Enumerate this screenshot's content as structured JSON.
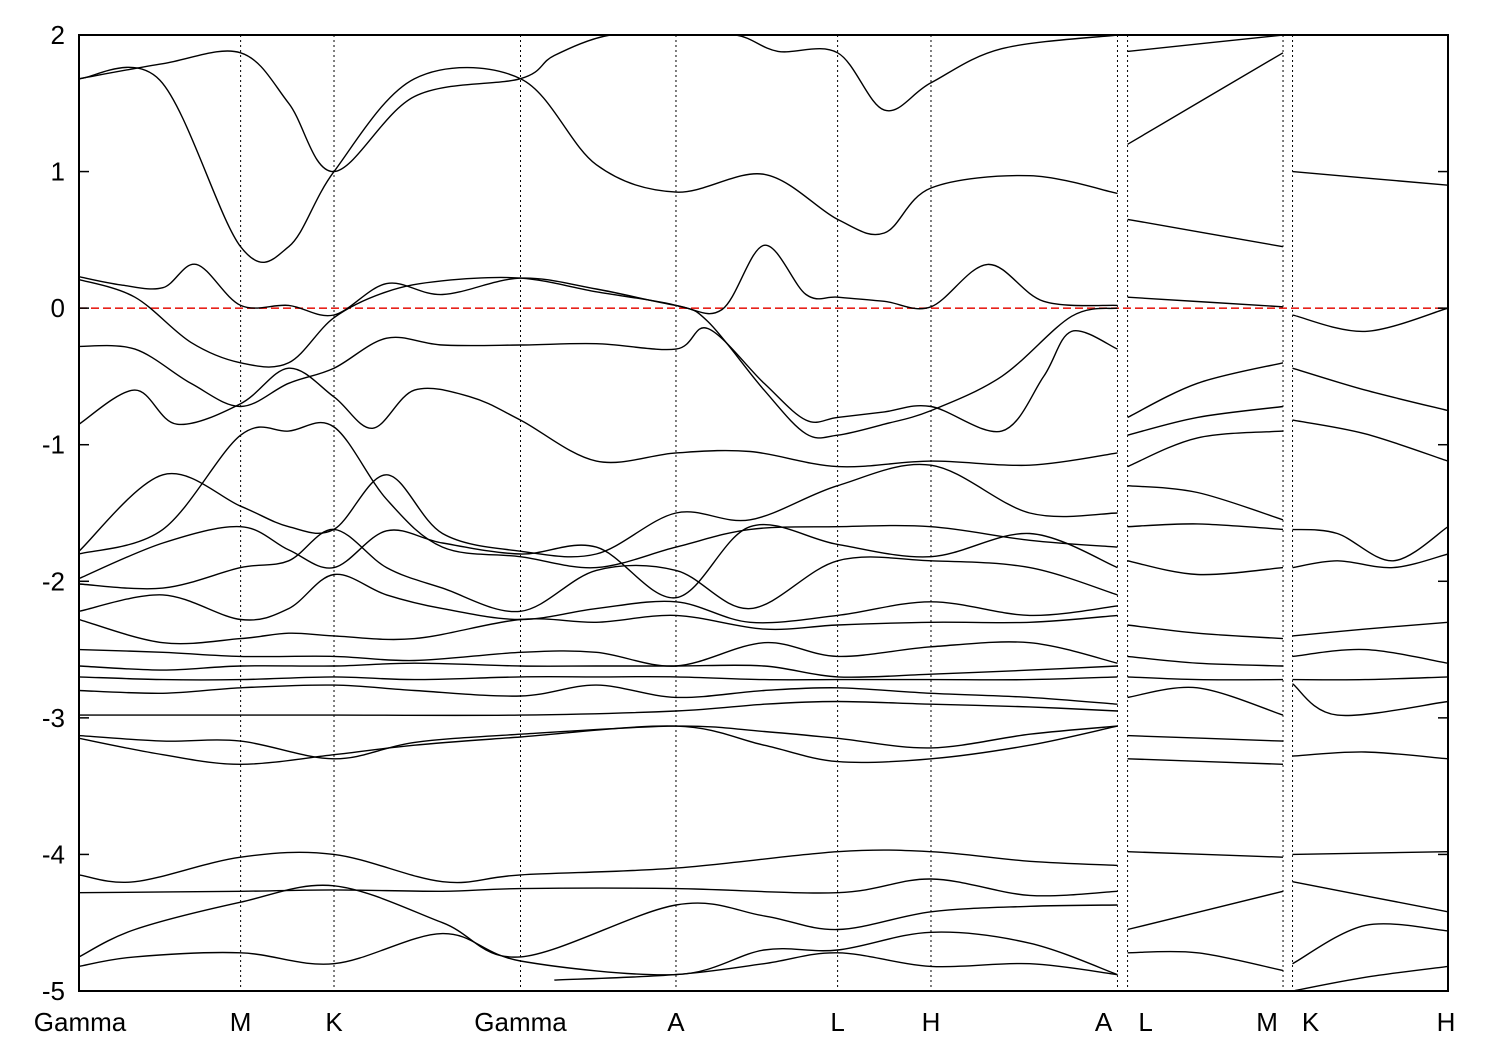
{
  "chart_data": {
    "type": "line",
    "ylim": [
      -5,
      2
    ],
    "y_ticks": [
      2,
      1,
      0,
      -1,
      -2,
      -3,
      -4,
      -5
    ],
    "y_tick_labels": [
      "2",
      "1",
      "0",
      "-1",
      "-2",
      "-3",
      "-4",
      "-5"
    ],
    "k_path": [
      {
        "label": "Gamma",
        "k": 0.0
      },
      {
        "label": "M",
        "k": 0.578
      },
      {
        "label": "K",
        "k": 0.912
      },
      {
        "label": "Gamma",
        "k": 1.579
      },
      {
        "label": "A",
        "k": 2.135
      },
      {
        "label": "L",
        "k": 2.713
      },
      {
        "label": "H",
        "k": 3.047
      },
      {
        "label": "A",
        "k": 3.714
      },
      {
        "label": "L",
        "k": 3.75
      },
      {
        "label": "M",
        "k": 4.306
      },
      {
        "label": "K",
        "k": 4.34
      },
      {
        "label": "H",
        "k": 4.896
      }
    ],
    "x_range": [
      0,
      4.896
    ],
    "fermi_level": 0.0,
    "fermi_line_color": "#e8221a",
    "band_color": "#000000",
    "bands": [
      {
        "k": [
          0,
          0.289,
          0.578,
          0.75,
          0.912,
          1.2,
          1.579,
          1.85,
          2.135,
          2.45,
          2.713,
          2.88,
          3.047,
          3.4,
          3.714
        ],
        "e": [
          1.68,
          1.67,
          0.45,
          0.45,
          1.0,
          1.68,
          1.68,
          1.05,
          0.85,
          0.98,
          0.65,
          0.55,
          0.88,
          0.97,
          0.84
        ]
      },
      {
        "k": [
          0,
          0.3,
          0.578,
          0.75,
          0.912,
          1.2,
          1.579,
          1.7,
          1.9,
          2.135,
          2.35,
          2.5,
          2.713,
          2.88,
          3.047,
          3.3,
          3.714
        ],
        "e": [
          1.68,
          1.79,
          1.87,
          1.5,
          1.0,
          1.55,
          1.68,
          1.85,
          2.0,
          2.0,
          2.0,
          1.88,
          1.87,
          1.45,
          1.65,
          1.9,
          2.0
        ]
      },
      {
        "k": [
          0,
          0.15,
          0.3,
          0.42,
          0.578,
          0.75,
          0.912,
          1.1,
          1.3,
          1.579,
          1.85,
          2.135,
          2.3,
          2.45,
          2.6,
          2.713,
          2.88,
          3.047,
          3.25,
          3.45,
          3.714
        ],
        "e": [
          0.23,
          0.17,
          0.15,
          0.32,
          0.02,
          0.02,
          -0.05,
          0.18,
          0.1,
          0.22,
          0.14,
          0.02,
          -0.01,
          0.46,
          0.1,
          0.08,
          0.05,
          0.01,
          0.32,
          0.05,
          0.02
        ]
      },
      {
        "k": [
          0,
          0.2,
          0.4,
          0.578,
          0.75,
          0.912,
          1.1,
          1.3,
          1.579,
          1.85,
          2.135,
          2.25,
          2.45,
          2.6,
          2.713,
          2.88,
          3.047,
          3.3,
          3.55,
          3.714
        ],
        "e": [
          0.21,
          0.08,
          -0.25,
          -0.4,
          -0.4,
          -0.07,
          0.12,
          0.2,
          0.22,
          0.12,
          0.02,
          -0.1,
          -0.6,
          -0.92,
          -0.93,
          -0.85,
          -0.75,
          -0.5,
          -0.06,
          0.0
        ]
      },
      {
        "k": [
          0,
          0.2,
          0.4,
          0.578,
          0.75,
          0.912,
          1.1,
          1.3,
          1.579,
          1.85,
          2.135,
          2.25,
          2.45,
          2.6,
          2.713,
          2.88,
          3.047,
          3.3,
          3.45,
          3.55,
          3.714
        ],
        "e": [
          -0.28,
          -0.3,
          -0.55,
          -0.72,
          -0.55,
          -0.44,
          -0.22,
          -0.27,
          -0.27,
          -0.26,
          -0.3,
          -0.15,
          -0.55,
          -0.82,
          -0.8,
          -0.76,
          -0.72,
          -0.9,
          -0.5,
          -0.17,
          -0.3
        ]
      },
      {
        "k": [
          0,
          0.2,
          0.35,
          0.578,
          0.75,
          0.912,
          1.05,
          1.2,
          1.4,
          1.579,
          1.85,
          2.135,
          2.4,
          2.713,
          3.047,
          3.4,
          3.714
        ],
        "e": [
          -0.85,
          -0.6,
          -0.85,
          -0.7,
          -0.44,
          -0.65,
          -0.88,
          -0.6,
          -0.65,
          -0.82,
          -1.12,
          -1.06,
          -1.05,
          -1.16,
          -1.12,
          -1.15,
          -1.06
        ]
      },
      {
        "k": [
          0,
          0.3,
          0.578,
          0.75,
          0.912,
          1.1,
          1.3,
          1.579,
          1.85,
          2.135,
          2.4,
          2.713,
          3.047,
          3.4,
          3.714
        ],
        "e": [
          -1.78,
          -1.22,
          -1.45,
          -1.6,
          -1.62,
          -1.22,
          -1.65,
          -1.78,
          -1.8,
          -1.5,
          -1.55,
          -1.3,
          -1.15,
          -1.5,
          -1.5
        ]
      },
      {
        "k": [
          0,
          0.3,
          0.578,
          0.75,
          0.912,
          1.1,
          1.3,
          1.579,
          1.85,
          2.135,
          2.4,
          2.713,
          3.047,
          3.4,
          3.714
        ],
        "e": [
          -1.8,
          -1.62,
          -0.93,
          -0.9,
          -0.87,
          -1.4,
          -1.75,
          -1.82,
          -1.9,
          -1.75,
          -1.62,
          -1.6,
          -1.6,
          -1.7,
          -1.75
        ]
      },
      {
        "k": [
          0,
          0.3,
          0.578,
          0.75,
          0.912,
          1.1,
          1.3,
          1.579,
          1.85,
          2.135,
          2.4,
          2.713,
          3.047,
          3.4,
          3.714
        ],
        "e": [
          -1.98,
          -1.72,
          -1.6,
          -1.77,
          -1.9,
          -1.63,
          -1.72,
          -1.8,
          -1.75,
          -2.12,
          -1.6,
          -1.73,
          -1.82,
          -1.65,
          -1.9
        ]
      },
      {
        "k": [
          0,
          0.3,
          0.578,
          0.75,
          0.912,
          1.1,
          1.3,
          1.579,
          1.85,
          2.135,
          2.4,
          2.713,
          3.047,
          3.4,
          3.714
        ],
        "e": [
          -2.02,
          -2.05,
          -1.9,
          -1.85,
          -1.62,
          -1.9,
          -2.05,
          -2.22,
          -1.92,
          -1.92,
          -2.2,
          -1.85,
          -1.85,
          -1.9,
          -2.1
        ]
      },
      {
        "k": [
          0,
          0.3,
          0.578,
          0.75,
          0.912,
          1.1,
          1.3,
          1.579,
          1.85,
          2.135,
          2.4,
          2.713,
          3.047,
          3.4,
          3.714
        ],
        "e": [
          -2.22,
          -2.1,
          -2.28,
          -2.2,
          -1.95,
          -2.1,
          -2.2,
          -2.28,
          -2.2,
          -2.15,
          -2.3,
          -2.25,
          -2.15,
          -2.25,
          -2.18
        ]
      },
      {
        "k": [
          0,
          0.3,
          0.578,
          0.75,
          0.912,
          1.2,
          1.579,
          1.85,
          2.135,
          2.45,
          2.713,
          3.047,
          3.4,
          3.714
        ],
        "e": [
          -2.28,
          -2.45,
          -2.42,
          -2.38,
          -2.4,
          -2.42,
          -2.28,
          -2.3,
          -2.25,
          -2.35,
          -2.32,
          -2.3,
          -2.3,
          -2.25
        ]
      },
      {
        "k": [
          0,
          0.3,
          0.578,
          0.912,
          1.2,
          1.579,
          1.85,
          2.135,
          2.45,
          2.713,
          3.047,
          3.4,
          3.714
        ],
        "e": [
          -2.5,
          -2.52,
          -2.55,
          -2.55,
          -2.58,
          -2.52,
          -2.52,
          -2.62,
          -2.45,
          -2.55,
          -2.48,
          -2.45,
          -2.6
        ]
      },
      {
        "k": [
          0,
          0.3,
          0.578,
          0.912,
          1.2,
          1.579,
          1.85,
          2.135,
          2.45,
          2.713,
          3.047,
          3.4,
          3.714
        ],
        "e": [
          -2.62,
          -2.65,
          -2.62,
          -2.62,
          -2.6,
          -2.62,
          -2.62,
          -2.62,
          -2.62,
          -2.7,
          -2.68,
          -2.65,
          -2.62
        ]
      },
      {
        "k": [
          0,
          0.3,
          0.578,
          0.912,
          1.2,
          1.579,
          1.85,
          2.135,
          2.45,
          2.713,
          3.047,
          3.4,
          3.714
        ],
        "e": [
          -2.7,
          -2.72,
          -2.72,
          -2.7,
          -2.72,
          -2.7,
          -2.7,
          -2.7,
          -2.72,
          -2.72,
          -2.72,
          -2.72,
          -2.7
        ]
      },
      {
        "k": [
          0,
          0.3,
          0.578,
          0.912,
          1.2,
          1.579,
          1.85,
          2.135,
          2.45,
          2.713,
          3.047,
          3.4,
          3.714
        ],
        "e": [
          -2.8,
          -2.82,
          -2.78,
          -2.76,
          -2.8,
          -2.84,
          -2.76,
          -2.85,
          -2.8,
          -2.78,
          -2.82,
          -2.85,
          -2.9
        ]
      },
      {
        "k": [
          0,
          0.578,
          0.912,
          1.579,
          2.135,
          2.45,
          2.713,
          3.047,
          3.4,
          3.714
        ],
        "e": [
          -2.98,
          -2.98,
          -2.98,
          -2.98,
          -2.95,
          -2.9,
          -2.88,
          -2.9,
          -2.92,
          -2.95
        ]
      },
      {
        "k": [
          0,
          0.3,
          0.578,
          0.912,
          1.2,
          1.579,
          2.135,
          2.45,
          2.713,
          3.047,
          3.4,
          3.714
        ],
        "e": [
          -3.13,
          -3.17,
          -3.17,
          -3.3,
          -3.18,
          -3.12,
          -3.06,
          -3.1,
          -3.15,
          -3.22,
          -3.12,
          -3.06
        ]
      },
      {
        "k": [
          0,
          0.3,
          0.578,
          0.912,
          1.2,
          1.579,
          2.135,
          2.45,
          2.713,
          3.047,
          3.4,
          3.714
        ],
        "e": [
          -3.15,
          -3.27,
          -3.34,
          -3.27,
          -3.2,
          -3.14,
          -3.06,
          -3.2,
          -3.32,
          -3.3,
          -3.2,
          -3.06
        ]
      },
      {
        "k": [
          0,
          0.2,
          0.578,
          0.912,
          1.3,
          1.579,
          2.135,
          2.713,
          3.047,
          3.4,
          3.714
        ],
        "e": [
          -4.15,
          -4.2,
          -4.02,
          -4.0,
          -4.2,
          -4.15,
          -4.1,
          -3.98,
          -3.98,
          -4.05,
          -4.08
        ]
      },
      {
        "k": [
          0,
          0.578,
          0.912,
          1.3,
          1.579,
          2.135,
          2.713,
          3.047,
          3.4,
          3.714
        ],
        "e": [
          -4.28,
          -4.27,
          -4.26,
          -4.27,
          -4.25,
          -4.25,
          -4.28,
          -4.18,
          -4.3,
          -4.27
        ]
      },
      {
        "k": [
          0,
          0.2,
          0.578,
          0.912,
          1.3,
          1.579,
          2.135,
          2.45,
          2.713,
          3.047,
          3.4,
          3.714
        ],
        "e": [
          -4.75,
          -4.55,
          -4.35,
          -4.23,
          -4.5,
          -4.75,
          -4.37,
          -4.45,
          -4.55,
          -4.42,
          -4.38,
          -4.37
        ]
      },
      {
        "k": [
          0,
          0.2,
          0.578,
          0.912,
          1.3,
          1.579,
          2.135,
          2.45,
          2.713,
          3.047,
          3.4,
          3.714
        ],
        "e": [
          -4.82,
          -4.75,
          -4.72,
          -4.8,
          -4.58,
          -4.78,
          -4.88,
          -4.7,
          -4.7,
          -4.57,
          -4.65,
          -4.88
        ]
      },
      {
        "k": [
          1.7,
          2.135,
          2.45,
          2.713,
          3.047,
          3.4,
          3.714
        ],
        "e": [
          -4.92,
          -4.88,
          -4.8,
          -4.72,
          -4.82,
          -4.8,
          -4.88
        ]
      },
      {
        "k": [
          3.75,
          4.306
        ],
        "e": [
          1.2,
          1.87
        ]
      },
      {
        "k": [
          3.75,
          4.306
        ],
        "e": [
          1.88,
          2.0
        ]
      },
      {
        "k": [
          3.75,
          4.306
        ],
        "e": [
          0.65,
          0.45
        ]
      },
      {
        "k": [
          3.75,
          4.306
        ],
        "e": [
          0.08,
          0.01
        ]
      },
      {
        "k": [
          3.75,
          4.0,
          4.306
        ],
        "e": [
          -0.8,
          -0.55,
          -0.4
        ]
      },
      {
        "k": [
          3.75,
          4.0,
          4.306
        ],
        "e": [
          -0.93,
          -0.8,
          -0.72
        ]
      },
      {
        "k": [
          3.75,
          4.0,
          4.306
        ],
        "e": [
          -1.16,
          -0.95,
          -0.9
        ]
      },
      {
        "k": [
          3.75,
          4.0,
          4.306
        ],
        "e": [
          -1.3,
          -1.35,
          -1.55
        ]
      },
      {
        "k": [
          3.75,
          4.0,
          4.306
        ],
        "e": [
          -1.6,
          -1.58,
          -1.62
        ]
      },
      {
        "k": [
          3.75,
          4.0,
          4.306
        ],
        "e": [
          -1.85,
          -1.95,
          -1.9
        ]
      },
      {
        "k": [
          3.75,
          4.0,
          4.306
        ],
        "e": [
          -2.32,
          -2.38,
          -2.42
        ]
      },
      {
        "k": [
          3.75,
          4.0,
          4.306
        ],
        "e": [
          -2.55,
          -2.6,
          -2.62
        ]
      },
      {
        "k": [
          3.75,
          4.0,
          4.306
        ],
        "e": [
          -2.7,
          -2.72,
          -2.72
        ]
      },
      {
        "k": [
          3.75,
          4.0,
          4.306
        ],
        "e": [
          -2.85,
          -2.78,
          -2.98
        ]
      },
      {
        "k": [
          3.75,
          4.306
        ],
        "e": [
          -3.13,
          -3.17
        ]
      },
      {
        "k": [
          3.75,
          4.306
        ],
        "e": [
          -3.3,
          -3.34
        ]
      },
      {
        "k": [
          3.75,
          4.306
        ],
        "e": [
          -3.98,
          -4.02
        ]
      },
      {
        "k": [
          3.75,
          4.306
        ],
        "e": [
          -4.55,
          -4.27
        ]
      },
      {
        "k": [
          3.75,
          4.0,
          4.306
        ],
        "e": [
          -4.72,
          -4.72,
          -4.85
        ]
      },
      {
        "k": [
          4.34,
          4.896
        ],
        "e": [
          1.0,
          0.9
        ]
      },
      {
        "k": [
          4.34,
          4.6,
          4.896
        ],
        "e": [
          -0.05,
          -0.17,
          0.0
        ]
      },
      {
        "k": [
          4.34,
          4.6,
          4.896
        ],
        "e": [
          -0.44,
          -0.6,
          -0.75
        ]
      },
      {
        "k": [
          4.34,
          4.6,
          4.896
        ],
        "e": [
          -0.82,
          -0.92,
          -1.12
        ]
      },
      {
        "k": [
          4.34,
          4.5,
          4.7,
          4.896
        ],
        "e": [
          -1.62,
          -1.65,
          -1.85,
          -1.6
        ]
      },
      {
        "k": [
          4.34,
          4.5,
          4.7,
          4.896
        ],
        "e": [
          -1.9,
          -1.85,
          -1.9,
          -1.8
        ]
      },
      {
        "k": [
          4.34,
          4.6,
          4.896
        ],
        "e": [
          -2.4,
          -2.35,
          -2.3
        ]
      },
      {
        "k": [
          4.34,
          4.6,
          4.896
        ],
        "e": [
          -2.55,
          -2.5,
          -2.6
        ]
      },
      {
        "k": [
          4.34,
          4.6,
          4.896
        ],
        "e": [
          -2.72,
          -2.72,
          -2.7
        ]
      },
      {
        "k": [
          4.34,
          4.5,
          4.896
        ],
        "e": [
          -2.75,
          -2.98,
          -2.88
        ]
      },
      {
        "k": [
          4.34,
          4.6,
          4.896
        ],
        "e": [
          -3.28,
          -3.25,
          -3.3
        ]
      },
      {
        "k": [
          4.34,
          4.896
        ],
        "e": [
          -4.0,
          -3.98
        ]
      },
      {
        "k": [
          4.34,
          4.896
        ],
        "e": [
          -4.2,
          -4.42
        ]
      },
      {
        "k": [
          4.34,
          4.6,
          4.896
        ],
        "e": [
          -4.8,
          -4.52,
          -4.56
        ]
      },
      {
        "k": [
          4.34,
          4.6,
          4.896
        ],
        "e": [
          -5.0,
          -4.9,
          -4.82
        ]
      }
    ]
  }
}
